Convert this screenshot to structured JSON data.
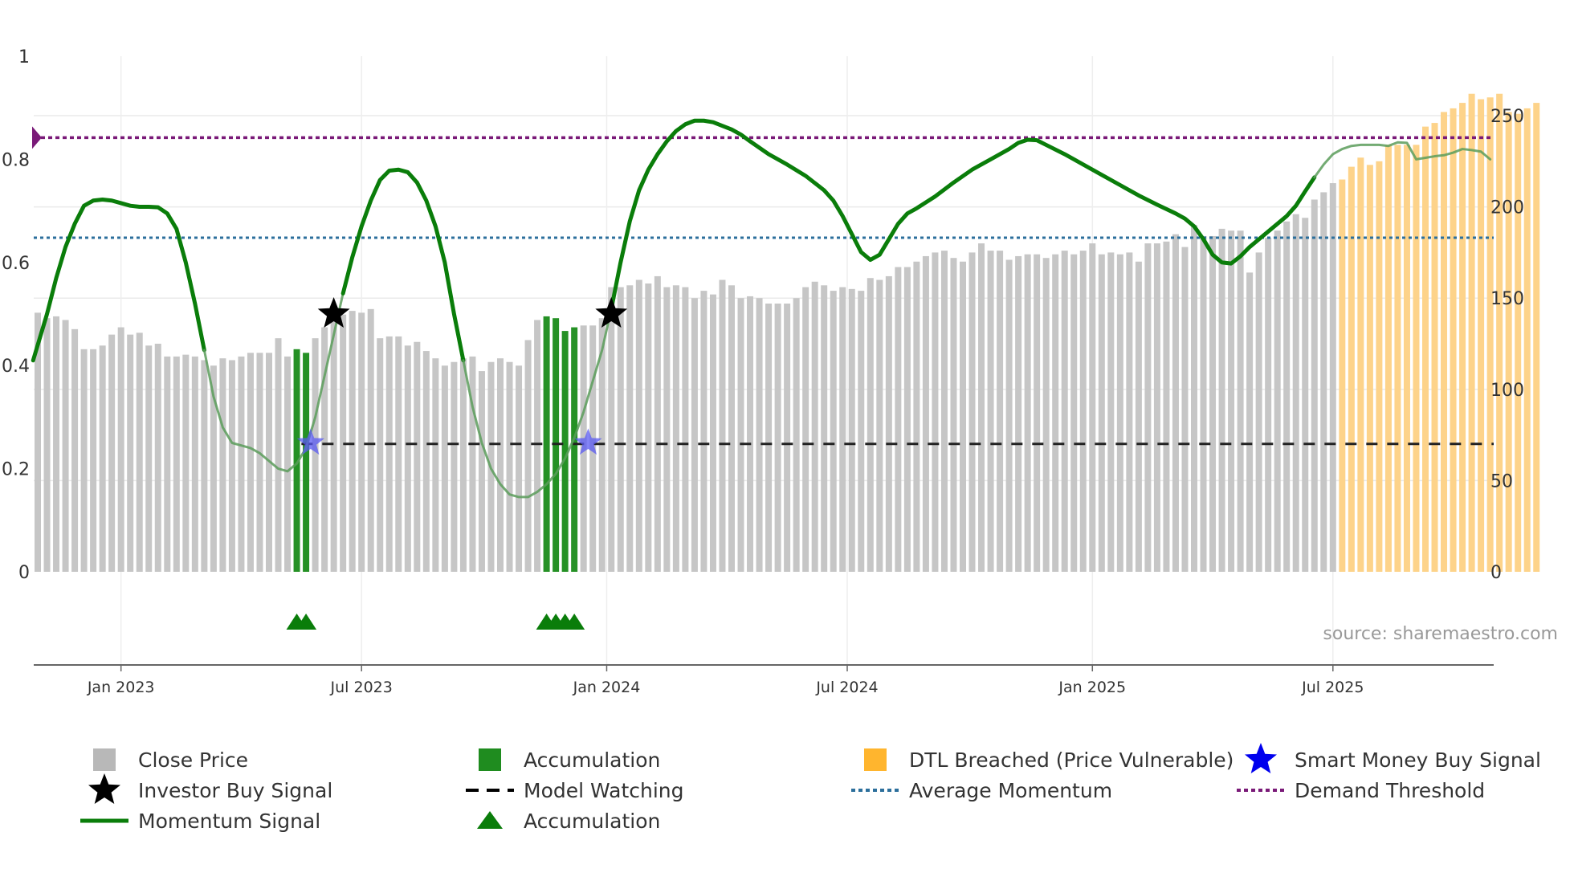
{
  "chart_data": {
    "type": "bar+line",
    "source_text": "source: sharemaestro.com",
    "left_axis": {
      "ylim": [
        0,
        1
      ],
      "ticks": [
        0,
        0.2,
        0.4,
        0.6,
        0.8,
        1
      ],
      "tick_labels": [
        "0",
        "0.2",
        "0.4",
        "0.6",
        "0.8",
        "1"
      ]
    },
    "right_axis": {
      "ylim": [
        0,
        260
      ],
      "ticks": [
        0,
        50,
        100,
        150,
        200,
        250
      ],
      "tick_labels": [
        "0",
        "50",
        "100",
        "150",
        "200",
        "250"
      ]
    },
    "x_ticks": [
      {
        "label": "Jan 2023",
        "week": 14
      },
      {
        "label": "Jul 2023",
        "week": 40
      },
      {
        "label": "Jan 2024",
        "week": 66.5
      },
      {
        "label": "Jul 2024",
        "week": 92.5
      },
      {
        "label": "Jan 2025",
        "week": 119
      },
      {
        "label": "Jul 2025",
        "week": 145
      }
    ],
    "x_range": [
      4.5,
      162
    ],
    "close_price": [
      142,
      139,
      140,
      138,
      133,
      122,
      122,
      124,
      130,
      134,
      130,
      131,
      124,
      125,
      118,
      118,
      119,
      118,
      116,
      113,
      117,
      116,
      118,
      120,
      120,
      120,
      128,
      118,
      122,
      120,
      128,
      134,
      138,
      141,
      143,
      142,
      144,
      128,
      129,
      129,
      124,
      126,
      121,
      117,
      113,
      115,
      117,
      118,
      110,
      115,
      117,
      115,
      113,
      127,
      138,
      140,
      139,
      132,
      134,
      135,
      135,
      139,
      156,
      156,
      157,
      160,
      158,
      162,
      156,
      157,
      156,
      150,
      154,
      152,
      160,
      157,
      150,
      151,
      150,
      147,
      147,
      147,
      150,
      156,
      159,
      157,
      154,
      156,
      155,
      154,
      161,
      160,
      162,
      167,
      167,
      170,
      173,
      175,
      176,
      172,
      170,
      175,
      180,
      176,
      176,
      171,
      173,
      174,
      174,
      172,
      174,
      176,
      174,
      176,
      180,
      174,
      175,
      174,
      175,
      170,
      180,
      180,
      181,
      185,
      178,
      190,
      184,
      184,
      188,
      187,
      187,
      164,
      175,
      183,
      187,
      192,
      196,
      194,
      204,
      208,
      213,
      215,
      222,
      227,
      223,
      225,
      234,
      234,
      234,
      234,
      244,
      246,
      252,
      254,
      257,
      262,
      259,
      260,
      262,
      252,
      251,
      254,
      257
    ],
    "accumulation_bar_weeks": [
      33,
      34,
      60,
      61,
      62,
      63
    ],
    "dtl_breached_start_week": 146,
    "momentum_points": [
      [
        4.5,
        0.41
      ],
      [
        6,
        0.5
      ],
      [
        7,
        0.57
      ],
      [
        8,
        0.63
      ],
      [
        9,
        0.675
      ],
      [
        10,
        0.71
      ],
      [
        11,
        0.72
      ],
      [
        12,
        0.722
      ],
      [
        13,
        0.72
      ],
      [
        14,
        0.715
      ],
      [
        15,
        0.71
      ],
      [
        16,
        0.708
      ],
      [
        17,
        0.708
      ],
      [
        18,
        0.707
      ],
      [
        19,
        0.695
      ],
      [
        20,
        0.665
      ],
      [
        21,
        0.6
      ],
      [
        22,
        0.52
      ],
      [
        23,
        0.43
      ],
      [
        24,
        0.34
      ],
      [
        25,
        0.28
      ],
      [
        26,
        0.25
      ],
      [
        27,
        0.245
      ],
      [
        28,
        0.24
      ],
      [
        29,
        0.23
      ],
      [
        30,
        0.215
      ],
      [
        31,
        0.2
      ],
      [
        32,
        0.195
      ],
      [
        33,
        0.21
      ],
      [
        34,
        0.24
      ],
      [
        35,
        0.3
      ],
      [
        36,
        0.38
      ],
      [
        37,
        0.46
      ],
      [
        38,
        0.54
      ],
      [
        39,
        0.61
      ],
      [
        40,
        0.67
      ],
      [
        41,
        0.72
      ],
      [
        42,
        0.76
      ],
      [
        43,
        0.778
      ],
      [
        44,
        0.78
      ],
      [
        45,
        0.775
      ],
      [
        46,
        0.755
      ],
      [
        47,
        0.72
      ],
      [
        48,
        0.67
      ],
      [
        49,
        0.6
      ],
      [
        50,
        0.5
      ],
      [
        51,
        0.41
      ],
      [
        52,
        0.32
      ],
      [
        53,
        0.25
      ],
      [
        54,
        0.2
      ],
      [
        55,
        0.17
      ],
      [
        56,
        0.15
      ],
      [
        57,
        0.145
      ],
      [
        58,
        0.145
      ],
      [
        59,
        0.155
      ],
      [
        60,
        0.17
      ],
      [
        61,
        0.19
      ],
      [
        62,
        0.22
      ],
      [
        63,
        0.26
      ],
      [
        64,
        0.31
      ],
      [
        65,
        0.37
      ],
      [
        66,
        0.43
      ],
      [
        67,
        0.51
      ],
      [
        68,
        0.6
      ],
      [
        69,
        0.68
      ],
      [
        70,
        0.74
      ],
      [
        71,
        0.78
      ],
      [
        72,
        0.81
      ],
      [
        73,
        0.835
      ],
      [
        74,
        0.855
      ],
      [
        75,
        0.868
      ],
      [
        76,
        0.875
      ],
      [
        77,
        0.875
      ],
      [
        78,
        0.872
      ],
      [
        79,
        0.865
      ],
      [
        80,
        0.858
      ],
      [
        81,
        0.848
      ],
      [
        82,
        0.835
      ],
      [
        84,
        0.81
      ],
      [
        86,
        0.79
      ],
      [
        88,
        0.768
      ],
      [
        90,
        0.74
      ],
      [
        91,
        0.72
      ],
      [
        92,
        0.69
      ],
      [
        93,
        0.655
      ],
      [
        94,
        0.62
      ],
      [
        95,
        0.605
      ],
      [
        96,
        0.615
      ],
      [
        97,
        0.645
      ],
      [
        98,
        0.675
      ],
      [
        99,
        0.695
      ],
      [
        100,
        0.705
      ],
      [
        102,
        0.728
      ],
      [
        104,
        0.755
      ],
      [
        106,
        0.78
      ],
      [
        108,
        0.8
      ],
      [
        110,
        0.82
      ],
      [
        111,
        0.832
      ],
      [
        112,
        0.838
      ],
      [
        113,
        0.837
      ],
      [
        114,
        0.828
      ],
      [
        116,
        0.81
      ],
      [
        118,
        0.79
      ],
      [
        120,
        0.77
      ],
      [
        122,
        0.75
      ],
      [
        124,
        0.73
      ],
      [
        126,
        0.712
      ],
      [
        128,
        0.695
      ],
      [
        129,
        0.685
      ],
      [
        130,
        0.67
      ],
      [
        131,
        0.645
      ],
      [
        132,
        0.615
      ],
      [
        133,
        0.6
      ],
      [
        134,
        0.598
      ],
      [
        135,
        0.612
      ],
      [
        136,
        0.63
      ],
      [
        138,
        0.66
      ],
      [
        140,
        0.69
      ],
      [
        141,
        0.71
      ],
      [
        142,
        0.738
      ],
      [
        143,
        0.765
      ],
      [
        144,
        0.79
      ],
      [
        145,
        0.81
      ],
      [
        146,
        0.82
      ],
      [
        147,
        0.826
      ],
      [
        148,
        0.828
      ],
      [
        149,
        0.828
      ],
      [
        150,
        0.828
      ],
      [
        151,
        0.826
      ],
      [
        152,
        0.833
      ],
      [
        153,
        0.832
      ],
      [
        154,
        0.8
      ],
      [
        155,
        0.803
      ],
      [
        156,
        0.806
      ],
      [
        157,
        0.808
      ],
      [
        158,
        0.813
      ],
      [
        159,
        0.82
      ],
      [
        160,
        0.818
      ],
      [
        161,
        0.815
      ],
      [
        162,
        0.8
      ]
    ],
    "momentum_faded_ranges": [
      [
        22.5,
        37.5
      ],
      [
        50.5,
        66.5
      ],
      [
        142,
        162
      ]
    ],
    "average_momentum": 0.648,
    "demand_threshold": 0.842,
    "model_watching": {
      "value": 0.248,
      "start_week": 33.5,
      "end_week": 162
    },
    "investor_buy_signals": [
      [
        37,
        0.5
      ],
      [
        67,
        0.5
      ]
    ],
    "smart_money_buy_signals": [
      [
        34.5,
        0.25
      ],
      [
        64.5,
        0.25
      ]
    ],
    "accumulation_markers": [
      33,
      34,
      60,
      61,
      62,
      63
    ],
    "legend": [
      {
        "label": "Close Price",
        "symbol": "square",
        "color": "#b8b8b8"
      },
      {
        "label": "Accumulation",
        "symbol": "square",
        "color": "#1f8c1f"
      },
      {
        "label": "DTL Breached (Price Vulnerable)",
        "symbol": "square",
        "color": "#ffb52e"
      },
      {
        "label": "Smart Money Buy Signal",
        "symbol": "star",
        "color": "#0000ee"
      },
      {
        "label": "Investor Buy Signal",
        "symbol": "star",
        "color": "#000000"
      },
      {
        "label": "Model Watching",
        "symbol": "dash",
        "color": "#000000"
      },
      {
        "label": "Average Momentum",
        "symbol": "dot",
        "color": "#2c6f9c"
      },
      {
        "label": "Demand Threshold",
        "symbol": "dot",
        "color": "#7a1a78"
      },
      {
        "label": "Momentum Signal",
        "symbol": "line",
        "color": "#0a7d0a"
      },
      {
        "label": "Accumulation",
        "symbol": "triangle",
        "color": "#0a7d0a"
      }
    ]
  }
}
